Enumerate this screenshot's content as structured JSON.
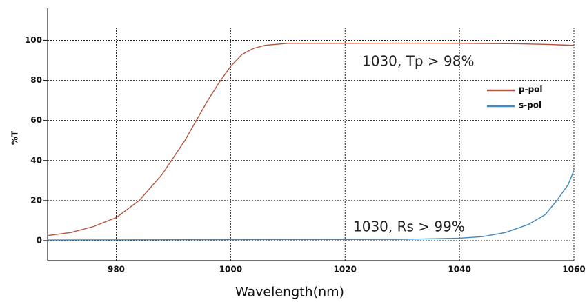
{
  "chart_data": {
    "type": "line",
    "x_label": "Wavelength(nm)",
    "y_label": "%T",
    "xlim": [
      968,
      1060
    ],
    "ylim": [
      -10,
      116
    ],
    "xticks": [
      980,
      1000,
      1020,
      1040,
      1060
    ],
    "yticks": [
      0,
      20,
      40,
      60,
      80,
      100
    ],
    "grid": true,
    "annotations": [
      "1030, Tp > 98%",
      "1030, Rs > 99%"
    ],
    "series": [
      {
        "name": "p-pol",
        "color": "#b5523b",
        "x": [
          968,
          972,
          976,
          980,
          984,
          988,
          992,
          994,
          996,
          998,
          1000,
          1002,
          1004,
          1006,
          1010,
          1020,
          1030,
          1040,
          1050,
          1055,
          1060
        ],
        "values": [
          2.5,
          4,
          7,
          11.5,
          20,
          33,
          50,
          60,
          70,
          79,
          87,
          93,
          96,
          97.5,
          98.5,
          98.5,
          98.6,
          98.5,
          98.3,
          98,
          97.5
        ]
      },
      {
        "name": "s-pol",
        "color": "#3f88c0",
        "x": [
          968,
          1000,
          1030,
          1040,
          1044,
          1048,
          1052,
          1055,
          1057,
          1059,
          1060
        ],
        "values": [
          0.3,
          0.5,
          0.6,
          1.2,
          2,
          4,
          8,
          13,
          20,
          28,
          35
        ]
      }
    ]
  }
}
